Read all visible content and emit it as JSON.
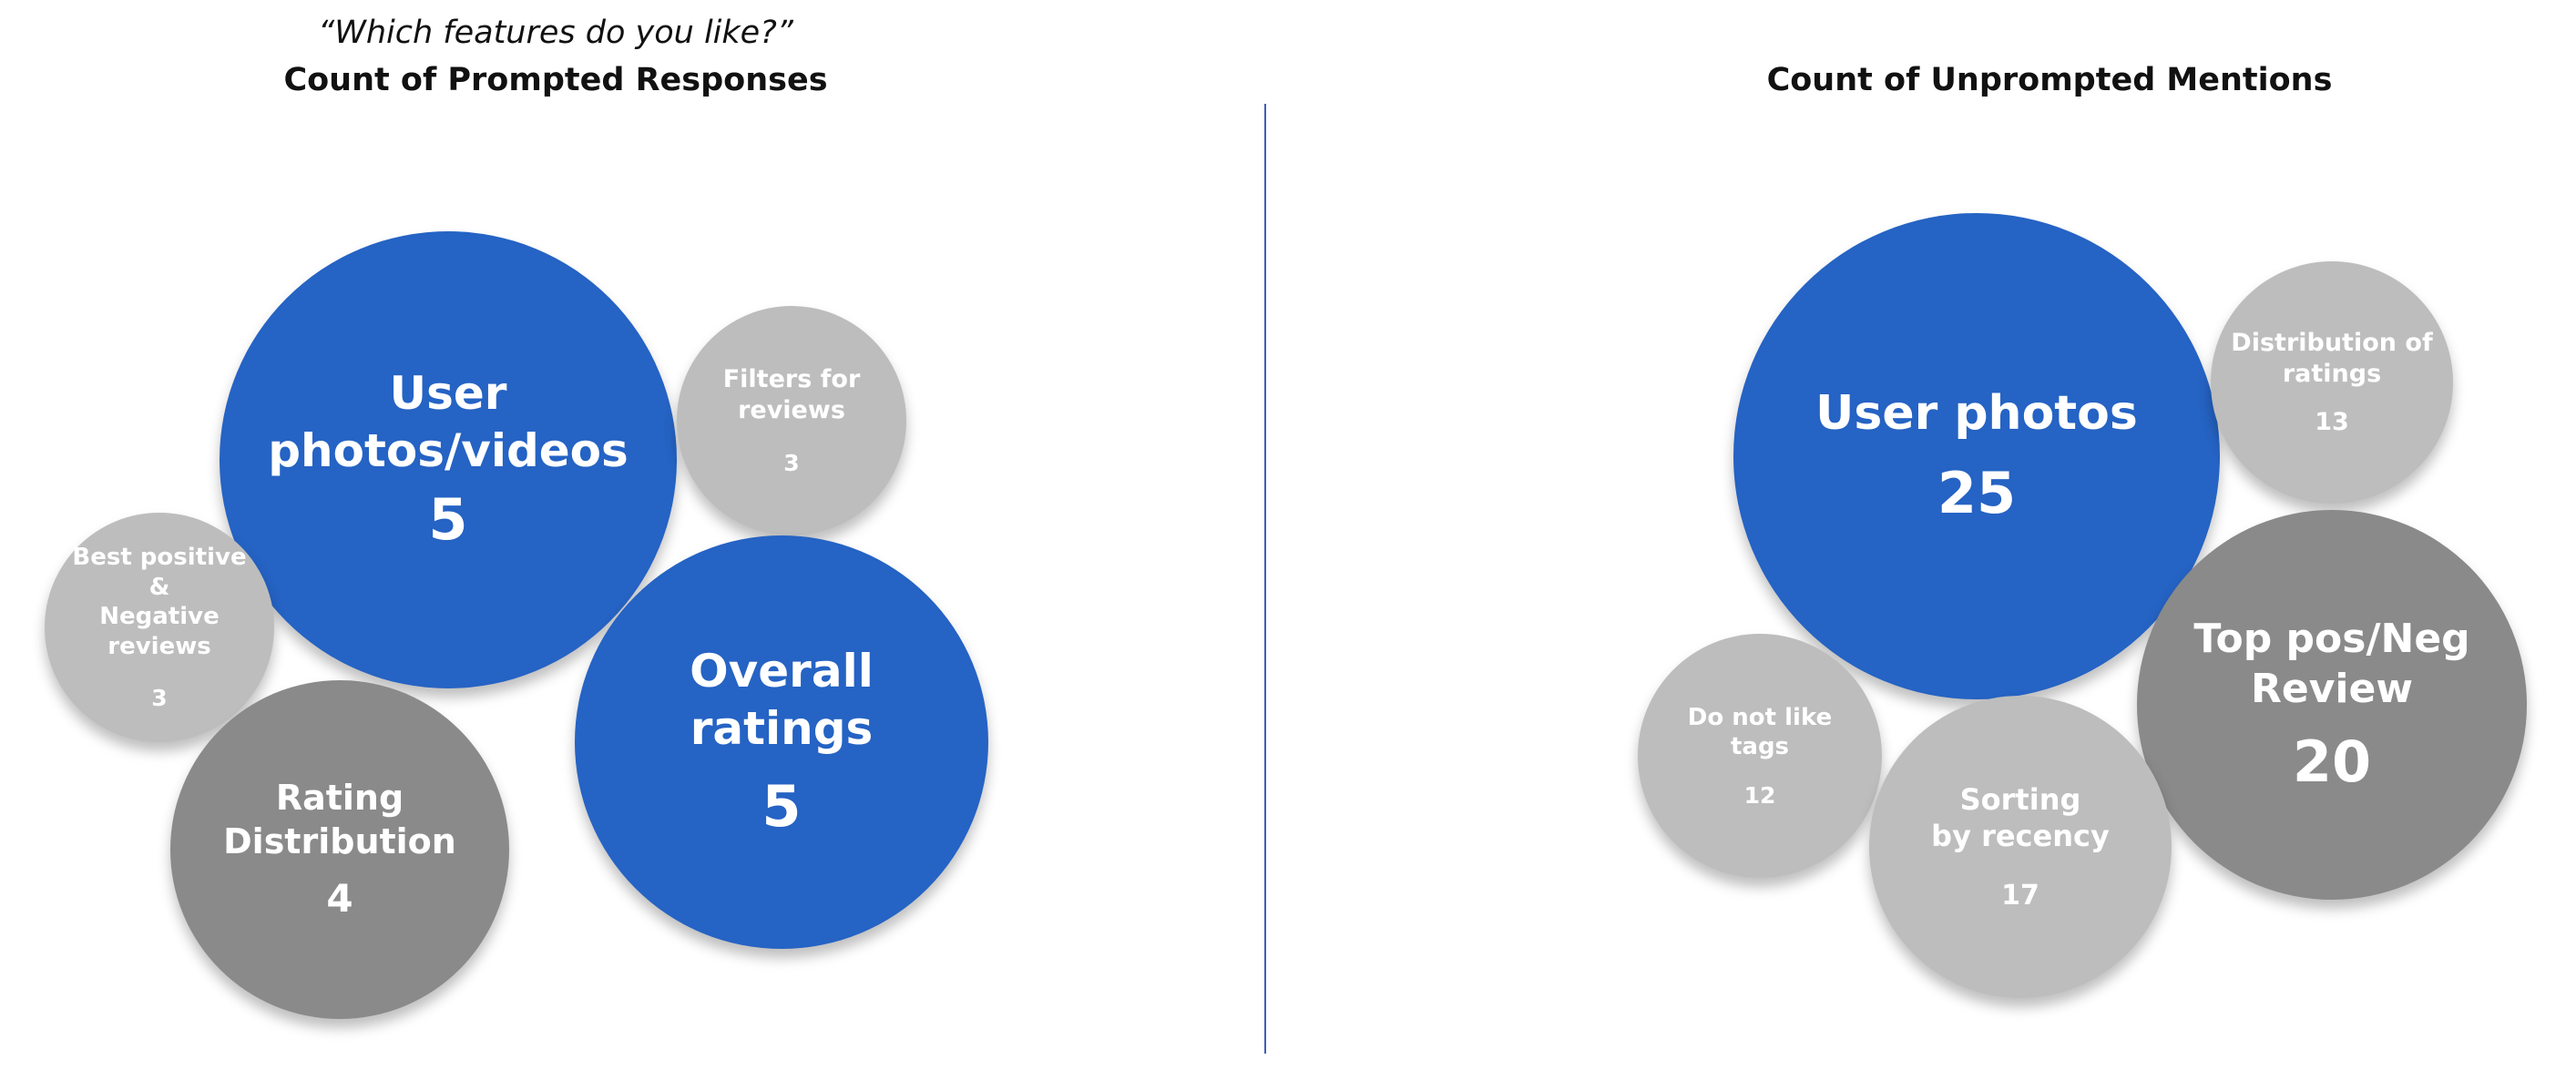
{
  "chart_data": [
    {
      "type": "bubble",
      "subtitle": "“Which features do you like?”",
      "title": "Count of Prompted Responses",
      "bubbles": [
        {
          "id": "user-photos-videos",
          "label": [
            "User",
            "photos/videos"
          ],
          "value": 5,
          "color": "#2563c4"
        },
        {
          "id": "filters-for-reviews",
          "label": [
            "Filters for",
            "reviews"
          ],
          "value": 3,
          "color": "#bdbdbd"
        },
        {
          "id": "best-positive-negative",
          "label": [
            "Best positive &",
            "Negative reviews"
          ],
          "value": 3,
          "color": "#bdbdbd"
        },
        {
          "id": "overall-ratings",
          "label": [
            "Overall ratings"
          ],
          "value": 5,
          "color": "#2563c4"
        },
        {
          "id": "rating-distribution",
          "label": [
            "Rating",
            "Distribution"
          ],
          "value": 4,
          "color": "#8a8a8a"
        }
      ]
    },
    {
      "type": "bubble",
      "title": "Count of Unprompted Mentions",
      "bubbles": [
        {
          "id": "user-photos",
          "label": [
            "User photos"
          ],
          "value": 25,
          "color": "#2563c4"
        },
        {
          "id": "distribution-of-ratings",
          "label": [
            "Distribution of",
            "ratings"
          ],
          "value": 13,
          "color": "#bdbdbd"
        },
        {
          "id": "top-pos-neg-review",
          "label": [
            "Top pos/Neg",
            "Review"
          ],
          "value": 20,
          "color": "#8a8a8a"
        },
        {
          "id": "do-not-like-tags",
          "label": [
            "Do not like",
            "tags"
          ],
          "value": 12,
          "color": "#bdbdbd"
        },
        {
          "id": "sorting-by-recency",
          "label": [
            "Sorting",
            "by recency"
          ],
          "value": 17,
          "color": "#bdbdbd"
        }
      ]
    }
  ],
  "colors": {
    "accent_blue": "#2563c4",
    "dark_gray": "#8a8a8a",
    "light_gray": "#bdbdbd",
    "divider": "#3d5fb5"
  }
}
